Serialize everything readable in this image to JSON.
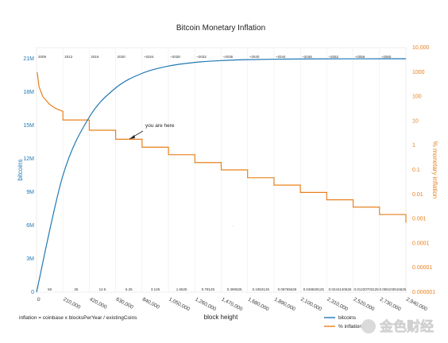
{
  "chart_data": {
    "type": "line",
    "title": "Bitcoin Monetary Inflation",
    "xlabel": "block height",
    "y_left_label": "bitcoins",
    "y_right_label": "% monetary inflation",
    "y_right_scale": "log",
    "xlim": [
      0,
      2940000
    ],
    "ylim_left": [
      0,
      22000000
    ],
    "ylim_right": [
      1e-06,
      10000
    ],
    "grid": false,
    "legend_position": "bottom-right",
    "x_ticks": [
      0,
      210000,
      420000,
      630000,
      840000,
      1050000,
      1260000,
      1470000,
      1680000,
      1890000,
      2100000,
      2310000,
      2520000,
      2730000,
      2940000
    ],
    "x_tick_labels": [
      "0",
      "210,000",
      "420,000",
      "630,000",
      "840,000",
      "1,050,000",
      "1,260,000",
      "1,470,000",
      "1,680,000",
      "1,890,000",
      "2,100,000",
      "2,310,000",
      "2,520,000",
      "2,730,000",
      "2,940,000"
    ],
    "year_labels": [
      "2009",
      "2012",
      "2016",
      "2020",
      "~2024",
      "~2028",
      "~2032",
      "~2036",
      "~2040",
      "~2044",
      "~2048",
      "~2052",
      "~2056",
      "~2060"
    ],
    "reward_labels": [
      "50",
      "25",
      "12.5",
      "6.25",
      "3.125",
      "1.5625",
      "0.78125",
      "0.390625",
      "0.1953125",
      "0.09765625",
      "0.048828125",
      "0.0244140625",
      "0.01220703125",
      "0.006103515625"
    ],
    "y_left_ticks": [
      0,
      3000000,
      6000000,
      9000000,
      12000000,
      15000000,
      18000000,
      21000000
    ],
    "y_left_tick_labels": [
      "0",
      "3M",
      "6M",
      "9M",
      "12M",
      "15M",
      "18M",
      "21M"
    ],
    "y_right_ticks": [
      1e-06,
      1e-05,
      0.0001,
      0.001,
      0.01,
      0.1,
      1,
      10,
      100,
      1000,
      10000
    ],
    "y_right_tick_labels": [
      "0.000001",
      "0.00001",
      "0.0001",
      "0.001",
      "0.01",
      "0.1",
      "1",
      "10",
      "100",
      "1000",
      "10,000"
    ],
    "series": [
      {
        "name": "bitcoins",
        "color": "#1f77b4",
        "axis": "left",
        "x": [
          0,
          210000,
          420000,
          630000,
          840000,
          1050000,
          1260000,
          1470000,
          1680000,
          1890000,
          2100000,
          2310000,
          2520000,
          2730000,
          2940000
        ],
        "values": [
          0,
          10500000,
          15750000,
          18375000,
          19687500,
          20343750,
          20671875,
          20835938,
          20917969,
          20958984,
          20979492,
          20989746,
          20994873,
          20997437,
          20998718
        ]
      },
      {
        "name": "% inflation",
        "color": "#e8801c",
        "axis": "right",
        "x": [
          5000,
          20000,
          50000,
          100000,
          150000,
          209999,
          210000,
          420000,
          630000,
          840000,
          1050000,
          1260000,
          1470000,
          1680000,
          1890000,
          2100000,
          2310000,
          2520000,
          2730000,
          2940000
        ],
        "values": [
          1000,
          250,
          100,
          50,
          33,
          25,
          11,
          4.2,
          1.8,
          0.85,
          0.42,
          0.2,
          0.1,
          0.048,
          0.024,
          0.012,
          0.006,
          0.003,
          0.0015,
          0.0007
        ]
      }
    ],
    "annotations": [
      {
        "text": "you are here",
        "x": 630000,
        "series": "% inflation"
      },
      {
        "text": "inflation = coinbase x blocksPerYear / existingCoins"
      }
    ]
  },
  "watermark": "金色财经"
}
